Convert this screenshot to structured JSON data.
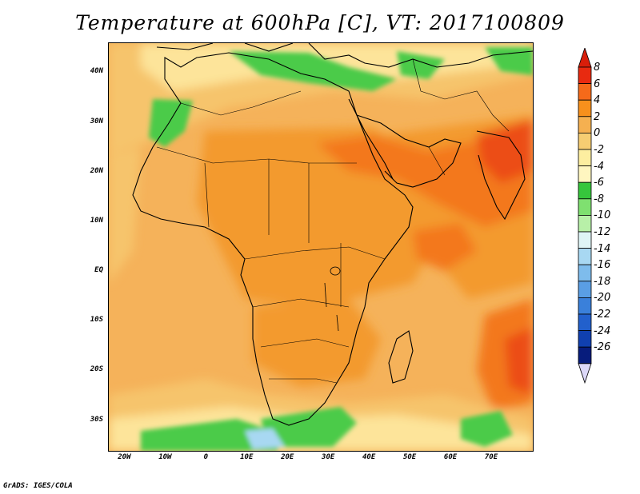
{
  "title": "Temperature at 600hPa [C], VT: 2017100809",
  "footer": "GrADS: IGES/COLA",
  "map": {
    "region": "Africa",
    "variable": "Temperature",
    "level": "600hPa",
    "units": "C",
    "lon_range": [
      -24,
      80
    ],
    "lat_range": [
      -36,
      46
    ],
    "lat_labels": [
      {
        "text": "40N",
        "lat": 40
      },
      {
        "text": "30N",
        "lat": 30
      },
      {
        "text": "20N",
        "lat": 20
      },
      {
        "text": "10N",
        "lat": 10
      },
      {
        "text": "EQ",
        "lat": 0
      },
      {
        "text": "10S",
        "lat": -10
      },
      {
        "text": "20S",
        "lat": -20
      },
      {
        "text": "30S",
        "lat": -30
      }
    ],
    "lon_labels": [
      {
        "text": "20W",
        "lon": -20
      },
      {
        "text": "10W",
        "lon": -10
      },
      {
        "text": "0",
        "lon": 0
      },
      {
        "text": "10E",
        "lon": 10
      },
      {
        "text": "20E",
        "lon": 20
      },
      {
        "text": "30E",
        "lon": 30
      },
      {
        "text": "40E",
        "lon": 40
      },
      {
        "text": "50E",
        "lon": 50
      },
      {
        "text": "60E",
        "lon": 60
      },
      {
        "text": "70E",
        "lon": 70
      }
    ]
  },
  "colorbar": {
    "labels": [
      "8",
      "6",
      "4",
      "2",
      "0",
      "-2",
      "-4",
      "-6",
      "-8",
      "-10",
      "-12",
      "-14",
      "-16",
      "-18",
      "-20",
      "-22",
      "-24",
      "-26"
    ],
    "colors": [
      "#e82a10",
      "#f56a1a",
      "#f7901c",
      "#f5b050",
      "#f6cd72",
      "#fdeea0",
      "#fff6c0",
      "#36c63c",
      "#7fe070",
      "#b8f0a8",
      "#dff5f6",
      "#a8d8f2",
      "#7ebcec",
      "#5a9ee4",
      "#3a80da",
      "#2260cc",
      "#1040b0",
      "#071c7c"
    ],
    "over_color": "#d81e0a",
    "under_color": "#dcd8f8"
  }
}
